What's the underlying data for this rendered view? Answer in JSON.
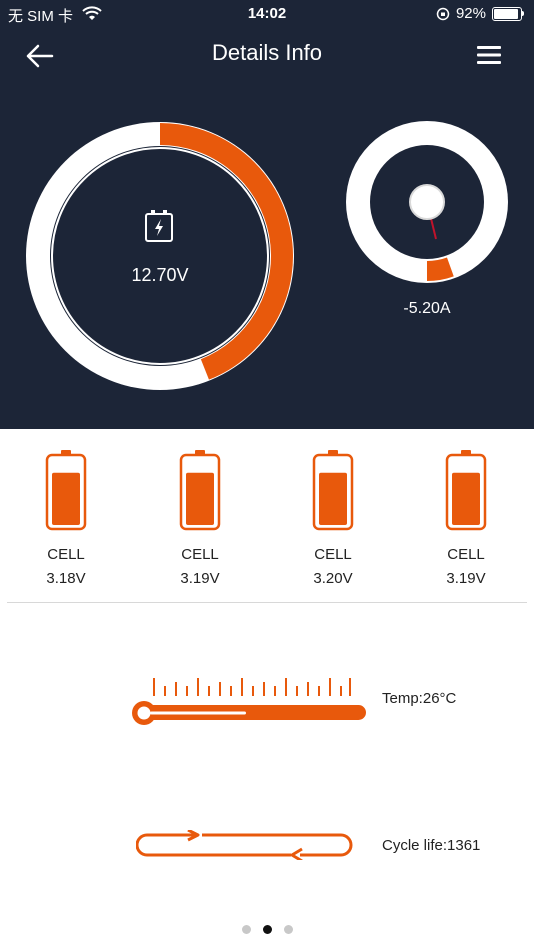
{
  "status_bar": {
    "carrier": "无 SIM 卡",
    "time": "14:02",
    "battery_percent": "92%",
    "battery_level": 0.92
  },
  "header": {
    "title": "Details Info",
    "back_icon": "arrow-left-icon",
    "menu_icon": "hamburger-menu-icon"
  },
  "voltage_gauge": {
    "value_text": "12.70V",
    "fill_fraction": 0.44,
    "accent_color": "#e8590c",
    "icon": "battery-charging-icon"
  },
  "current_gauge": {
    "value_text": "-5.20A",
    "fill_fraction": 0.055
  },
  "cells": [
    {
      "label": "CELL",
      "value": "3.18V",
      "level": 0.78
    },
    {
      "label": "CELL",
      "value": "3.19V",
      "level": 0.78
    },
    {
      "label": "CELL",
      "value": "3.20V",
      "level": 0.78
    },
    {
      "label": "CELL",
      "value": "3.19V",
      "level": 0.78
    }
  ],
  "temperature": {
    "text": "Temp:26°C",
    "icon": "thermometer-icon"
  },
  "cycle_life": {
    "text": "Cycle life:1361",
    "icon": "cycle-arrows-icon"
  },
  "pager": {
    "count": 3,
    "active_index": 1
  },
  "colors": {
    "accent": "#e8590c",
    "header_bg": "#1c2537"
  }
}
